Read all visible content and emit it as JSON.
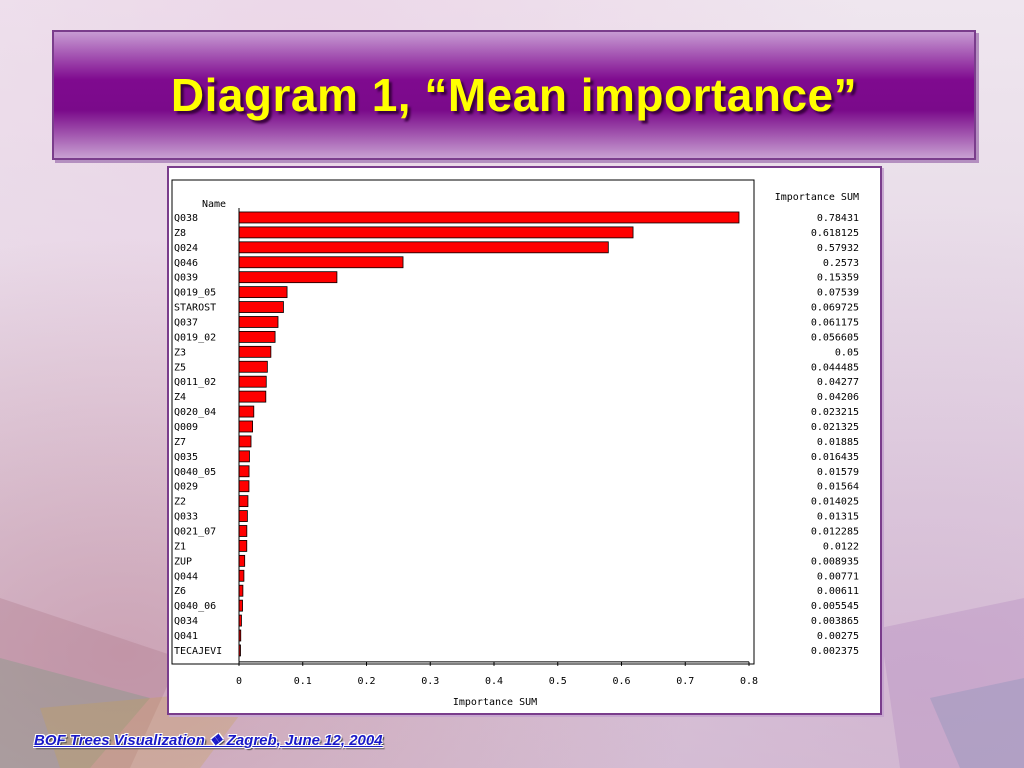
{
  "slide": {
    "title": "Diagram 1, “Mean importance”",
    "footer": "BOF Trees Visualization ❖ Zagreb, June 12, 2004"
  },
  "colors": {
    "bar": "#ff0000",
    "title_text": "#ffff00",
    "title_bg": "#7f0a8f",
    "footer_text": "#1a1ac8"
  },
  "chart_data": {
    "type": "bar",
    "orientation": "horizontal",
    "name_header": "Name",
    "value_header": "Importance SUM",
    "xlabel": "Importance SUM",
    "xlim": [
      0,
      0.8
    ],
    "xticks": [
      0,
      0.1,
      0.2,
      0.3,
      0.4,
      0.5,
      0.6,
      0.7,
      0.8
    ],
    "xtick_labels": [
      "0",
      "0.1",
      "0.2",
      "0.3",
      "0.4",
      "0.5",
      "0.6",
      "0.7",
      "0.8"
    ],
    "categories": [
      "Q038",
      "Z8",
      "Q024",
      "Q046",
      "Q039",
      "Q019_05",
      "STAROST",
      "Q037",
      "Q019_02",
      "Z3",
      "Z5",
      "Q011_02",
      "Z4",
      "Q020_04",
      "Q009",
      "Z7",
      "Q035",
      "Q040_05",
      "Q029",
      "Z2",
      "Q033",
      "Q021_07",
      "Z1",
      "ZUP",
      "Q044",
      "Z6",
      "Q040_06",
      "Q034",
      "Q041",
      "TECAJEVI"
    ],
    "values": [
      0.78431,
      0.618125,
      0.57932,
      0.2573,
      0.15359,
      0.07539,
      0.069725,
      0.061175,
      0.056605,
      0.05,
      0.044485,
      0.04277,
      0.04206,
      0.023215,
      0.021325,
      0.01885,
      0.016435,
      0.01579,
      0.01564,
      0.014025,
      0.01315,
      0.012285,
      0.0122,
      0.008935,
      0.00771,
      0.00611,
      0.005545,
      0.003865,
      0.00275,
      0.002375
    ],
    "value_labels": [
      "0.78431",
      "0.618125",
      "0.57932",
      "0.2573",
      "0.15359",
      "0.07539",
      "0.069725",
      "0.061175",
      "0.056605",
      "0.05",
      "0.044485",
      "0.04277",
      "0.04206",
      "0.023215",
      "0.021325",
      "0.01885",
      "0.016435",
      "0.01579",
      "0.01564",
      "0.014025",
      "0.01315",
      "0.012285",
      "0.0122",
      "0.008935",
      "0.00771",
      "0.00611",
      "0.005545",
      "0.003865",
      "0.00275",
      "0.002375"
    ]
  }
}
